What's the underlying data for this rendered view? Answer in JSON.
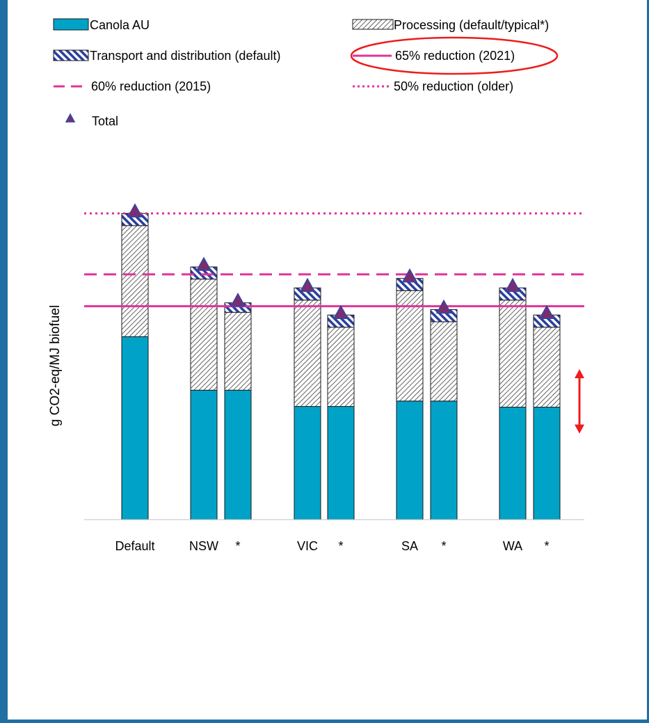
{
  "colors": {
    "canola": "#00a3c7",
    "transport_blue": "#2a3f9e",
    "reduction_line": "#e0339b",
    "total_marker_fill": "#7b2c73",
    "total_marker_edge": "#2e4a9e",
    "arrow": "#ee1c1c",
    "ellipse": "#ee1c1c",
    "frame": "#1f6fa3",
    "axis": "#bfbfbf"
  },
  "chart_data": {
    "type": "bar",
    "stacked": true,
    "ylabel": "g CO2-eq/MJ biofuel",
    "ylim": [
      0,
      55
    ],
    "grid": false,
    "legend_position": "top",
    "categories": [
      "Default",
      "NSW",
      "*",
      "VIC",
      "*",
      "SA",
      "*",
      "WA",
      "*"
    ],
    "series": [
      {
        "name": "Canola AU",
        "pattern": "solid",
        "values": [
          27.0,
          19.1,
          19.1,
          16.7,
          16.7,
          17.5,
          17.5,
          16.6,
          16.6
        ]
      },
      {
        "name": "Processing (default/typical*)",
        "pattern": "diagonal-hatch",
        "values": [
          16.4,
          16.4,
          11.5,
          15.7,
          11.7,
          16.3,
          11.7,
          15.8,
          11.8
        ]
      },
      {
        "name": "Transport and distribution (default)",
        "pattern": "blue-stripes",
        "values": [
          1.8,
          1.8,
          1.4,
          1.8,
          1.8,
          1.8,
          1.8,
          1.8,
          1.8
        ]
      }
    ],
    "total": {
      "name": "Total",
      "values": [
        45.2,
        37.3,
        32.0,
        34.2,
        30.2,
        35.6,
        31.0,
        34.2,
        30.2
      ]
    },
    "reference_lines": [
      {
        "name": "65% reduction (2021)",
        "value": 31.5,
        "style": "solid"
      },
      {
        "name": "60% reduction (2015)",
        "value": 36.2,
        "style": "dashed"
      },
      {
        "name": "50% reduction (older)",
        "value": 45.2,
        "style": "dotted"
      }
    ],
    "annotations": [
      {
        "type": "double-arrow",
        "from": 12.7,
        "to": 22.2
      },
      {
        "type": "ellipse",
        "highlights": "65% reduction (2021)"
      }
    ]
  }
}
